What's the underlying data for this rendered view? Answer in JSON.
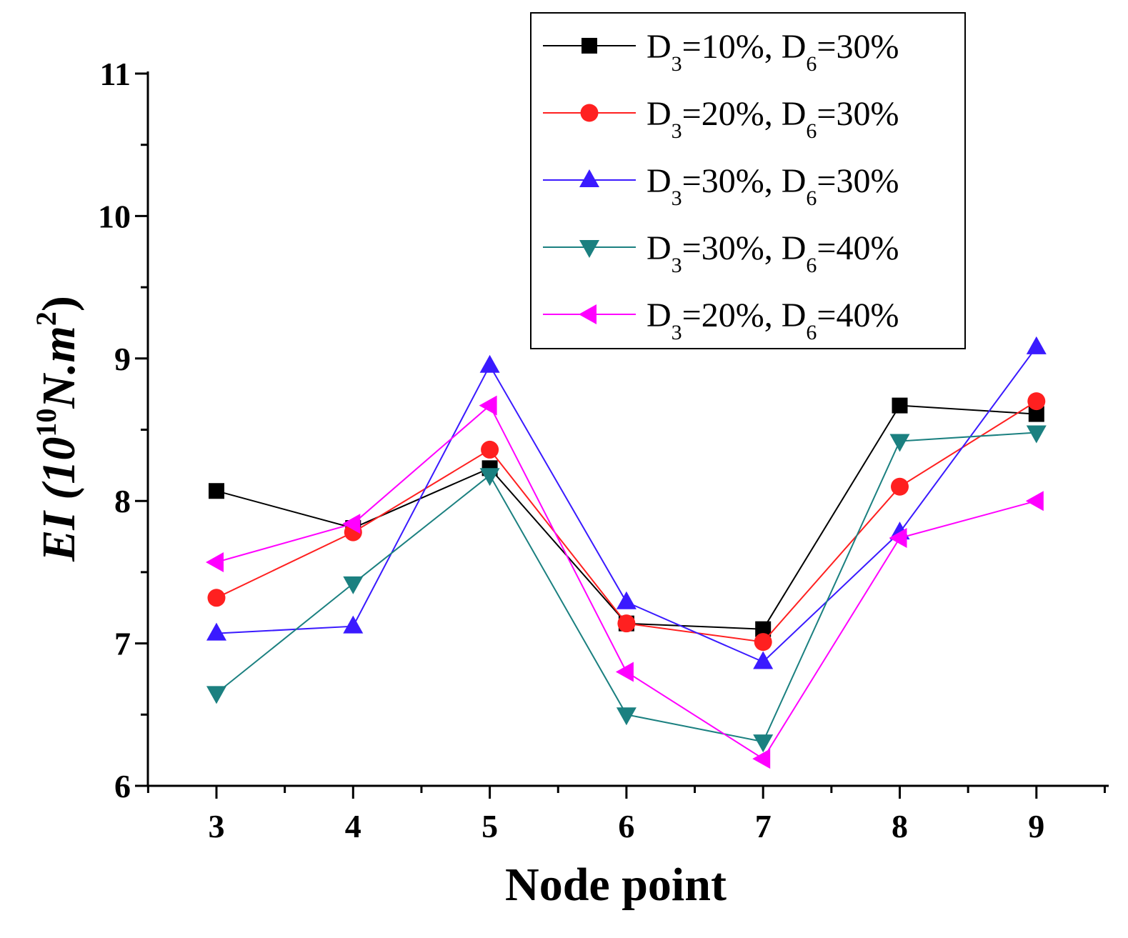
{
  "chart_data": {
    "type": "line",
    "title": "",
    "xlabel": "Node point",
    "ylabel": {
      "prefix": "EI (10",
      "exp": "10",
      "unit": "N.m",
      "unit_exp": "2",
      "suffix": ")"
    },
    "x": [
      3,
      4,
      5,
      6,
      7,
      8,
      9
    ],
    "x_tick_labels": [
      "3",
      "4",
      "5",
      "6",
      "7",
      "8",
      "9"
    ],
    "ylim": [
      6,
      11
    ],
    "y_ticks": [
      6,
      7,
      8,
      9,
      10,
      11
    ],
    "y_tick_labels": [
      "6",
      "7",
      "8",
      "9",
      "10",
      "11"
    ],
    "grid": false,
    "legend_position": "top-right",
    "series": [
      {
        "name": "D3=10%, D6=30%",
        "label": {
          "a": "D",
          "a_sub": "3",
          "a_val": "=10%, ",
          "b": "D",
          "b_sub": "6",
          "b_val": "=30%"
        },
        "color": "#000000",
        "marker": "square",
        "values": [
          8.07,
          7.81,
          8.23,
          7.14,
          7.1,
          8.67,
          8.61
        ]
      },
      {
        "name": "D3=20%, D6=30%",
        "label": {
          "a": "D",
          "a_sub": "3",
          "a_val": "=20%, ",
          "b": "D",
          "b_sub": "6",
          "b_val": "=30%"
        },
        "color": "#ff2020",
        "marker": "circle",
        "values": [
          7.32,
          7.78,
          8.36,
          7.14,
          7.01,
          8.1,
          8.7
        ]
      },
      {
        "name": "D3=30%, D6=30%",
        "label": {
          "a": "D",
          "a_sub": "3",
          "a_val": "=30%, ",
          "b": "D",
          "b_sub": "6",
          "b_val": "=30%"
        },
        "color": "#3a1aff",
        "marker": "triangle-up",
        "values": [
          7.07,
          7.12,
          8.95,
          7.29,
          6.87,
          7.78,
          9.08
        ]
      },
      {
        "name": "D3=30%, D6=40%",
        "label": {
          "a": "D",
          "a_sub": "3",
          "a_val": "=30%, ",
          "b": "D",
          "b_sub": "6",
          "b_val": "=40%"
        },
        "color": "#1b8080",
        "marker": "triangle-down",
        "values": [
          6.65,
          7.42,
          8.18,
          6.5,
          6.31,
          8.42,
          8.48
        ]
      },
      {
        "name": "D3=20%, D6=40%",
        "label": {
          "a": "D",
          "a_sub": "3",
          "a_val": "=20%, ",
          "b": "D",
          "b_sub": "6",
          "b_val": "=40%"
        },
        "color": "#ff00ff",
        "marker": "triangle-left",
        "values": [
          7.57,
          7.84,
          8.67,
          6.8,
          6.19,
          7.74,
          8.0
        ]
      }
    ]
  }
}
